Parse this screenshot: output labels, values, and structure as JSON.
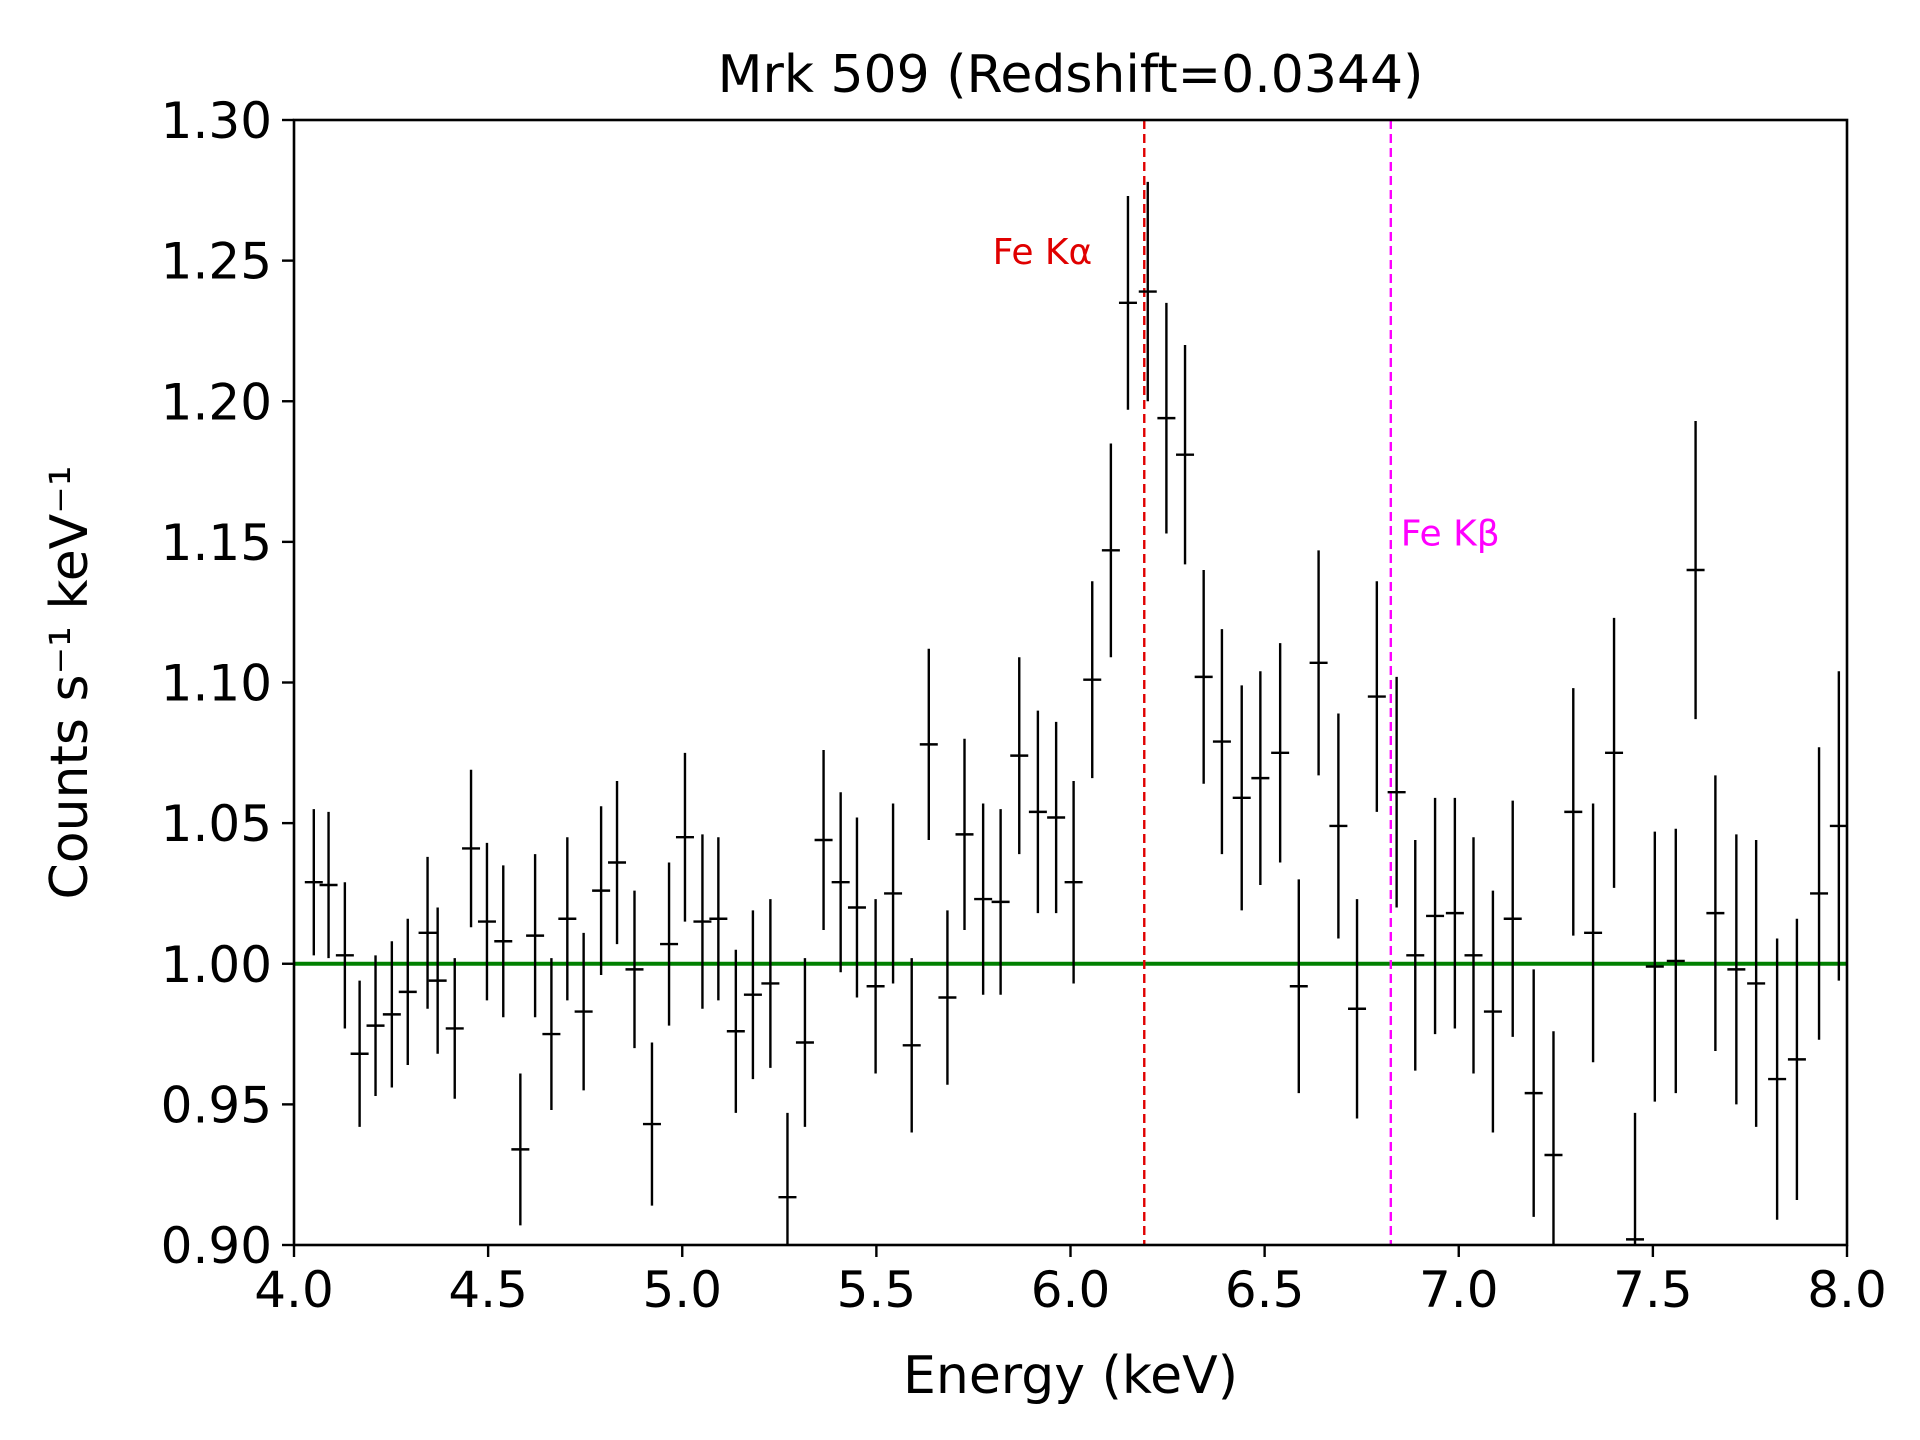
{
  "chart_data": {
    "type": "scatter",
    "title": "Mrk 509 (Redshift=0.0344)",
    "xlabel": "Energy (keV)",
    "ylabel": "Counts s⁻¹ keV⁻¹",
    "xlim": [
      4.0,
      8.0
    ],
    "ylim": [
      0.9,
      1.3
    ],
    "xticks": [
      4.0,
      4.5,
      5.0,
      5.5,
      6.0,
      6.5,
      7.0,
      7.5,
      8.0
    ],
    "xtick_labels": [
      "4.0",
      "4.5",
      "5.0",
      "5.5",
      "6.0",
      "6.5",
      "7.0",
      "7.5",
      "8.0"
    ],
    "yticks": [
      0.9,
      0.95,
      1.0,
      1.05,
      1.1,
      1.15,
      1.2,
      1.25,
      1.3
    ],
    "ytick_labels": [
      "0.90",
      "0.95",
      "1.00",
      "1.05",
      "1.10",
      "1.15",
      "1.20",
      "1.25",
      "1.30"
    ],
    "grid": false,
    "series": [
      {
        "name": "data",
        "color": "#000000",
        "style": "errorbar",
        "x": [
          4.051,
          4.089,
          4.131,
          4.169,
          4.21,
          4.252,
          4.293,
          4.344,
          4.37,
          4.414,
          4.456,
          4.497,
          4.539,
          4.583,
          4.621,
          4.663,
          4.704,
          4.746,
          4.791,
          4.832,
          4.877,
          4.922,
          4.966,
          5.007,
          5.052,
          5.093,
          5.138,
          5.182,
          5.227,
          5.271,
          5.316,
          5.364,
          5.408,
          5.45,
          5.498,
          5.543,
          5.591,
          5.635,
          5.683,
          5.727,
          5.775,
          5.82,
          5.868,
          5.916,
          5.963,
          6.008,
          6.056,
          6.104,
          6.148,
          6.199,
          6.247,
          6.295,
          6.343,
          6.39,
          6.441,
          6.489,
          6.54,
          6.588,
          6.639,
          6.69,
          6.738,
          6.789,
          6.84,
          6.888,
          6.939,
          6.99,
          7.038,
          7.088,
          7.139,
          7.193,
          7.244,
          7.295,
          7.346,
          7.4,
          7.454,
          7.505,
          7.559,
          7.61,
          7.661,
          7.715,
          7.766,
          7.82,
          7.871,
          7.928,
          7.979
        ],
        "y": [
          1.029,
          1.028,
          1.003,
          0.968,
          0.978,
          0.982,
          0.99,
          1.011,
          0.994,
          0.977,
          1.041,
          1.015,
          1.008,
          0.934,
          1.01,
          0.975,
          1.016,
          0.983,
          1.026,
          1.036,
          0.998,
          0.943,
          1.007,
          1.045,
          1.015,
          1.016,
          0.976,
          0.989,
          0.993,
          0.917,
          0.972,
          1.044,
          1.029,
          1.02,
          0.992,
          1.025,
          0.971,
          1.078,
          0.988,
          1.046,
          1.023,
          1.022,
          1.074,
          1.054,
          1.052,
          1.029,
          1.101,
          1.147,
          1.235,
          1.239,
          1.194,
          1.181,
          1.102,
          1.079,
          1.059,
          1.066,
          1.075,
          0.992,
          1.107,
          1.049,
          0.984,
          1.095,
          1.061,
          1.003,
          1.017,
          1.018,
          1.003,
          0.983,
          1.016,
          0.954,
          0.932,
          1.054,
          1.011,
          1.075,
          0.902,
          0.999,
          1.001,
          1.14,
          1.018,
          0.998,
          0.993,
          0.959,
          0.966,
          1.025,
          1.049
        ],
        "yerr": [
          0.026,
          0.026,
          0.026,
          0.026,
          0.025,
          0.026,
          0.026,
          0.027,
          0.026,
          0.025,
          0.028,
          0.028,
          0.027,
          0.027,
          0.029,
          0.027,
          0.029,
          0.028,
          0.03,
          0.029,
          0.028,
          0.029,
          0.029,
          0.03,
          0.031,
          0.029,
          0.029,
          0.03,
          0.03,
          0.03,
          0.03,
          0.032,
          0.032,
          0.032,
          0.031,
          0.032,
          0.031,
          0.034,
          0.031,
          0.034,
          0.034,
          0.033,
          0.035,
          0.036,
          0.034,
          0.036,
          0.035,
          0.038,
          0.038,
          0.039,
          0.041,
          0.039,
          0.038,
          0.04,
          0.04,
          0.038,
          0.039,
          0.038,
          0.04,
          0.04,
          0.039,
          0.041,
          0.041,
          0.041,
          0.042,
          0.041,
          0.042,
          0.043,
          0.042,
          0.044,
          0.044,
          0.044,
          0.046,
          0.048,
          0.045,
          0.048,
          0.047,
          0.053,
          0.049,
          0.048,
          0.051,
          0.05,
          0.05,
          0.052,
          0.055
        ]
      },
      {
        "name": "continuum model",
        "color": "#008000",
        "style": "line",
        "x": [
          4.0,
          8.0
        ],
        "y": [
          1.0,
          1.0
        ]
      }
    ],
    "vlines": [
      {
        "x": 6.19,
        "label": "Fe Kα",
        "color": "#e00000",
        "style": "dashed",
        "label_side": "left",
        "label_y": 1.253
      },
      {
        "x": 6.825,
        "label": "Fe Kβ",
        "color": "#ff00ff",
        "style": "dashed",
        "label_side": "right",
        "label_y": 1.153
      }
    ]
  }
}
